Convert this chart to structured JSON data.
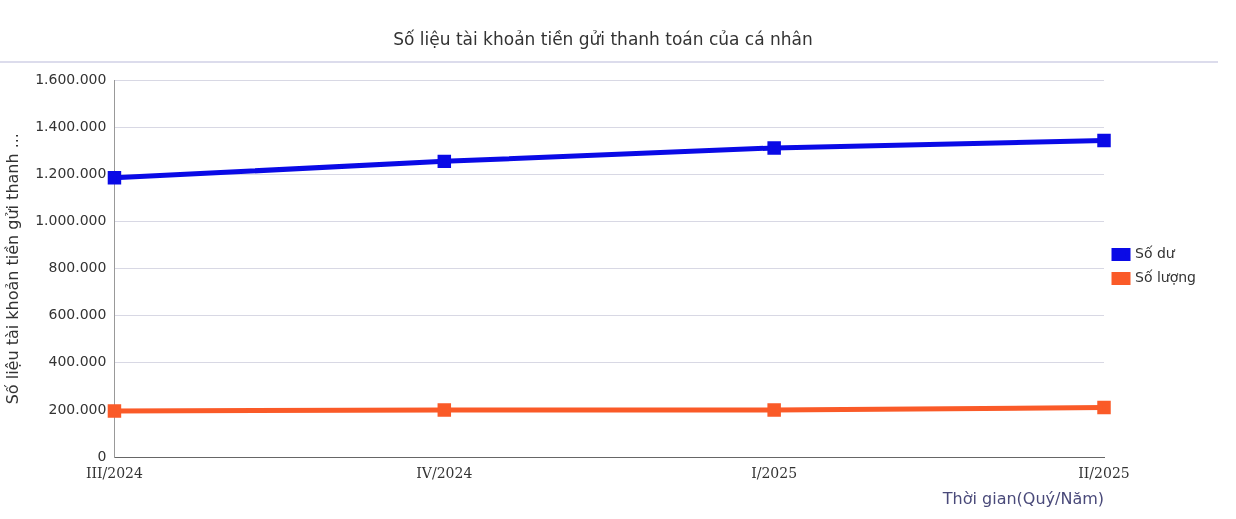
{
  "chart_data": {
    "type": "line",
    "title": "Số liệu tài khoản tiền gửi thanh toán của cá nhân",
    "xlabel": "Thời gian(Quý/Năm)",
    "ylabel": "Số liệu tài khoản tiền gửi thanh ...",
    "categories": [
      "III/2024",
      "IV/2024",
      "I/2025",
      "II/2025"
    ],
    "series": [
      {
        "name": "Số dư",
        "color": "#0a0ae6",
        "values": [
          1186000,
          1256000,
          1313000,
          1345000
        ]
      },
      {
        "name": "Số lượng",
        "color": "#fa5a28",
        "values": [
          195000,
          200000,
          200000,
          210000
        ]
      }
    ],
    "ylim": [
      0,
      1600000
    ],
    "yticks": [
      {
        "value": 0,
        "label": "0"
      },
      {
        "value": 200000,
        "label": "200.000"
      },
      {
        "value": 400000,
        "label": "400.000"
      },
      {
        "value": 600000,
        "label": "600.000"
      },
      {
        "value": 800000,
        "label": "800.000"
      },
      {
        "value": 1000000,
        "label": "1.000.000"
      },
      {
        "value": 1200000,
        "label": "1.200.000"
      },
      {
        "value": 1400000,
        "label": "1.400.000"
      },
      {
        "value": 1600000,
        "label": "1.600.000"
      }
    ],
    "grid": "y",
    "legend": "right",
    "marker": "square",
    "line_style": "solid"
  }
}
